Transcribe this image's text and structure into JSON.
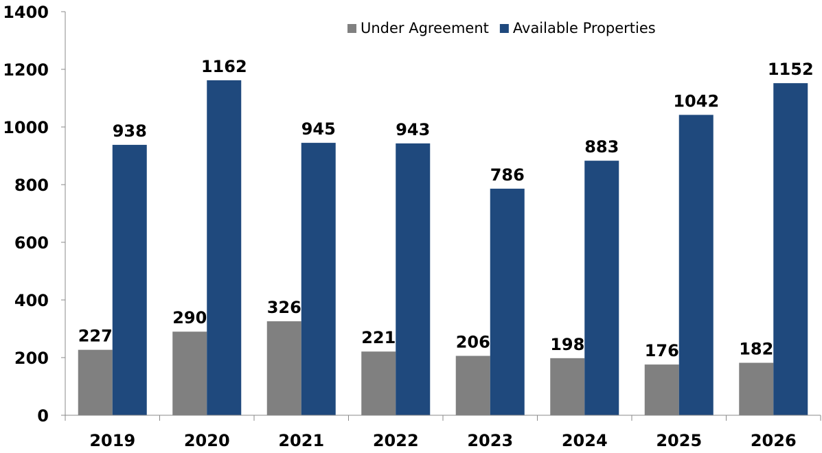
{
  "chart_data": {
    "type": "bar",
    "title": "",
    "xlabel": "",
    "ylabel": "",
    "categories": [
      "2019",
      "2020",
      "2021",
      "2022",
      "2023",
      "2024",
      "2025",
      "2026"
    ],
    "series": [
      {
        "name": "Under Agreement",
        "color": "#808080",
        "values": [
          227,
          290,
          326,
          221,
          206,
          198,
          176,
          182
        ]
      },
      {
        "name": "Available Properties",
        "color": "#1F497D",
        "values": [
          938,
          1162,
          945,
          943,
          786,
          883,
          1042,
          1152
        ]
      }
    ],
    "ylim": [
      0,
      1400
    ],
    "yticks": [
      0,
      200,
      400,
      600,
      800,
      1000,
      1200,
      1400
    ],
    "grid": false,
    "legend_position": "top-right",
    "data_labels": true
  }
}
